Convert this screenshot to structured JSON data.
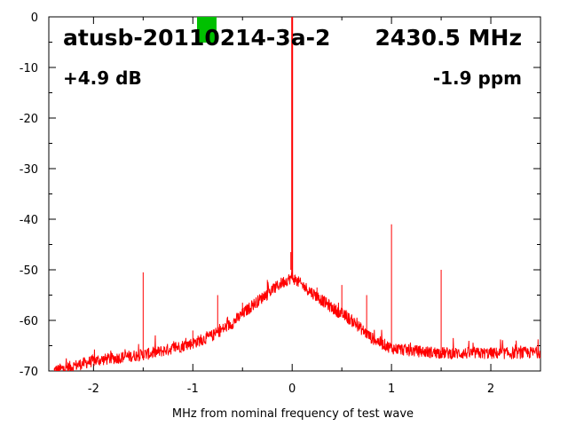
{
  "chart_data": {
    "type": "line",
    "title": "atusb-20110214-3a-2",
    "frequency_label": "2430.5 MHz",
    "gain_label": "+4.9 dB",
    "ppm_label": "-1.9 ppm",
    "xlabel": "MHz from nominal frequency of test wave",
    "ylabel": "",
    "xlim": [
      -2.45,
      2.5
    ],
    "ylim": [
      -70,
      0
    ],
    "x_ticks": [
      -2,
      -1,
      0,
      1,
      2
    ],
    "y_ticks": [
      0,
      -10,
      -20,
      -30,
      -40,
      -50,
      -60,
      -70
    ],
    "grid": false,
    "series": [
      {
        "color": "#ff0000",
        "noise_floor_envelope": {
          "x": [
            -2.4,
            -2.2,
            -2.0,
            -1.8,
            -1.6,
            -1.4,
            -1.2,
            -1.0,
            -0.8,
            -0.6,
            -0.4,
            -0.3,
            -0.2,
            -0.1,
            0.0,
            0.1,
            0.2,
            0.3,
            0.4,
            0.6,
            0.8,
            1.0,
            1.2,
            1.4,
            1.6,
            1.8,
            2.0,
            2.2,
            2.5
          ],
          "y": [
            -70,
            -69,
            -68,
            -67.5,
            -67,
            -66.5,
            -65.5,
            -64.5,
            -63,
            -60.5,
            -57,
            -55.5,
            -54,
            -52.5,
            -51.5,
            -53,
            -54.5,
            -56,
            -57.5,
            -60,
            -63.5,
            -65.5,
            -66,
            -66.3,
            -66.5,
            -66.5,
            -66.5,
            -66.5,
            -66.3
          ]
        },
        "carrier": {
          "x": 0.0,
          "y": 0
        },
        "spurs": [
          {
            "x": -1.5,
            "y": -50.5
          },
          {
            "x": -1.0,
            "y": -62
          },
          {
            "x": -0.75,
            "y": -55
          },
          {
            "x": -0.5,
            "y": -56.5
          },
          {
            "x": -0.25,
            "y": -52
          },
          {
            "x": 0.25,
            "y": -53.5
          },
          {
            "x": 0.5,
            "y": -53
          },
          {
            "x": 0.75,
            "y": -55
          },
          {
            "x": 1.0,
            "y": -41
          },
          {
            "x": 1.5,
            "y": -50
          }
        ]
      }
    ]
  },
  "marker": {
    "color": "#00c000"
  }
}
